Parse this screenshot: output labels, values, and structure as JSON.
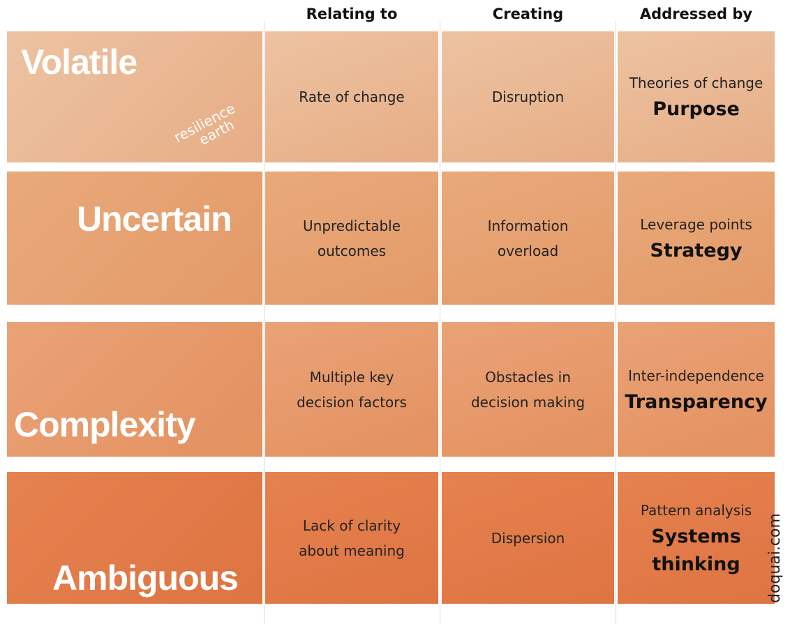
{
  "header": {
    "columns": [
      "Relating to",
      "Creating",
      "Addressed by"
    ]
  },
  "rows": [
    {
      "label": "Volatile",
      "relating": [
        "Rate of change"
      ],
      "creating": [
        "Disruption"
      ],
      "addressed": [
        "Theories of change"
      ],
      "keyword": [
        "Purpose"
      ]
    },
    {
      "label": "Uncertain",
      "relating": [
        "Unpredictable",
        "outcomes"
      ],
      "creating": [
        "Information",
        "overload"
      ],
      "addressed": [
        "Leverage points"
      ],
      "keyword": [
        "Strategy"
      ]
    },
    {
      "label": "Complexity",
      "relating": [
        "Multiple key",
        "decision factors"
      ],
      "creating": [
        "Obstacles in",
        "decision making"
      ],
      "addressed": [
        "Inter-independence"
      ],
      "keyword": [
        "Transparency"
      ]
    },
    {
      "label": "Ambiguous",
      "relating": [
        "Lack of clarity",
        "about meaning"
      ],
      "creating": [
        "Dispersion"
      ],
      "addressed": [
        "Pattern analysis"
      ],
      "keyword": [
        "Systems",
        "thinking"
      ]
    }
  ],
  "logo": [
    "resilience",
    "earth"
  ],
  "credit": "doquai.com"
}
